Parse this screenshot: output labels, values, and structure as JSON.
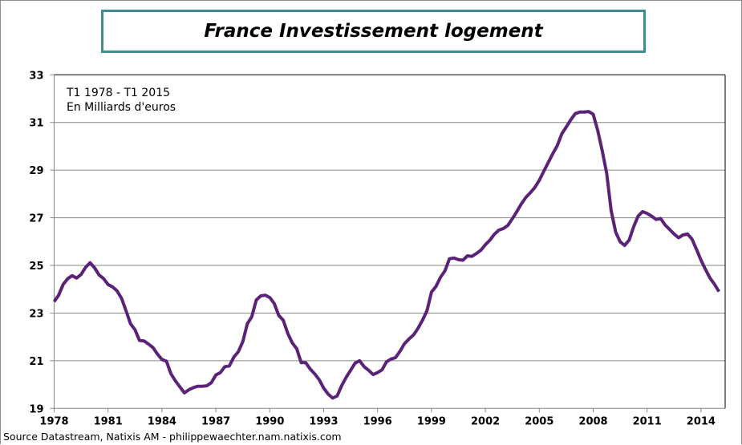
{
  "chart_data": {
    "type": "line",
    "title": "France Investissement logement",
    "annotation_lines": [
      "T1 1978 - T1 2015",
      "En Milliards  d'euros"
    ],
    "source": "Source Datastream, Natixis AM - philippewaechter.nam.natixis.com",
    "x_start": "1978 Q1",
    "x_end": "2015 Q1",
    "frequency": "quarterly",
    "xticks": [
      "1978",
      "1981",
      "1984",
      "1987",
      "1990",
      "1993",
      "1996",
      "1999",
      "2002",
      "2005",
      "2008",
      "2011",
      "2014"
    ],
    "yticks": [
      19,
      21,
      23,
      25,
      27,
      29,
      31,
      33
    ],
    "ylim": [
      19,
      33
    ],
    "grid": "horizontal",
    "line_color": "#5b2378",
    "values": [
      23.48,
      23.75,
      24.2,
      24.44,
      24.57,
      24.47,
      24.62,
      24.92,
      25.11,
      24.9,
      24.6,
      24.45,
      24.2,
      24.1,
      23.93,
      23.62,
      23.1,
      22.55,
      22.3,
      21.85,
      21.83,
      21.7,
      21.55,
      21.28,
      21.05,
      20.98,
      20.45,
      20.15,
      19.9,
      19.65,
      19.78,
      19.87,
      19.93,
      19.93,
      19.95,
      20.08,
      20.4,
      20.5,
      20.75,
      20.78,
      21.15,
      21.38,
      21.8,
      22.55,
      22.85,
      23.55,
      23.72,
      23.75,
      23.65,
      23.4,
      22.9,
      22.7,
      22.15,
      21.75,
      21.5,
      20.92,
      20.92,
      20.65,
      20.45,
      20.2,
      19.85,
      19.6,
      19.43,
      19.52,
      19.95,
      20.3,
      20.6,
      20.9,
      21.0,
      20.75,
      20.6,
      20.42,
      20.5,
      20.62,
      20.96,
      21.07,
      21.13,
      21.4,
      21.72,
      21.91,
      22.08,
      22.36,
      22.7,
      23.1,
      23.88,
      24.12,
      24.5,
      24.77,
      25.28,
      25.31,
      25.24,
      25.22,
      25.4,
      25.38,
      25.5,
      25.64,
      25.87,
      26.06,
      26.31,
      26.48,
      26.55,
      26.68,
      26.96,
      27.26,
      27.58,
      27.85,
      28.05,
      28.27,
      28.57,
      28.95,
      29.32,
      29.69,
      30.03,
      30.52,
      30.81,
      31.11,
      31.37,
      31.44,
      31.44,
      31.46,
      31.34,
      30.67,
      29.82,
      28.87,
      27.3,
      26.4,
      25.99,
      25.84,
      26.06,
      26.62,
      27.07,
      27.26,
      27.18,
      27.07,
      26.93,
      26.97,
      26.7,
      26.51,
      26.32,
      26.16,
      26.28,
      26.32,
      26.1,
      25.67,
      25.22,
      24.83,
      24.47,
      24.21,
      23.9
    ]
  }
}
